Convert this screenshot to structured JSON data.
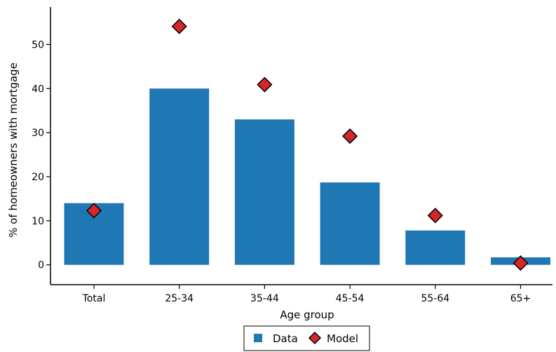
{
  "chart_data": {
    "type": "bar",
    "categories": [
      "Total",
      "25-34",
      "35-44",
      "45-54",
      "55-64",
      "65+"
    ],
    "series": [
      {
        "name": "Data",
        "kind": "bar",
        "values": [
          14.0,
          40.0,
          33.0,
          18.7,
          7.8,
          1.7
        ]
      },
      {
        "name": "Model",
        "kind": "marker",
        "values": [
          12.3,
          54.1,
          40.9,
          29.2,
          11.2,
          0.4
        ]
      }
    ],
    "xlabel": "Age group",
    "ylabel": "% of homeowners with mortgage",
    "yticks": [
      0,
      10,
      20,
      30,
      40,
      50
    ],
    "ylim": [
      -4.5,
      58.5
    ],
    "grid": false,
    "legend_position": "bottom-center",
    "colors": {
      "bar": "#1f77b4",
      "marker_fill": "#d62728",
      "marker_edge": "#000000",
      "axis": "#000000"
    }
  }
}
